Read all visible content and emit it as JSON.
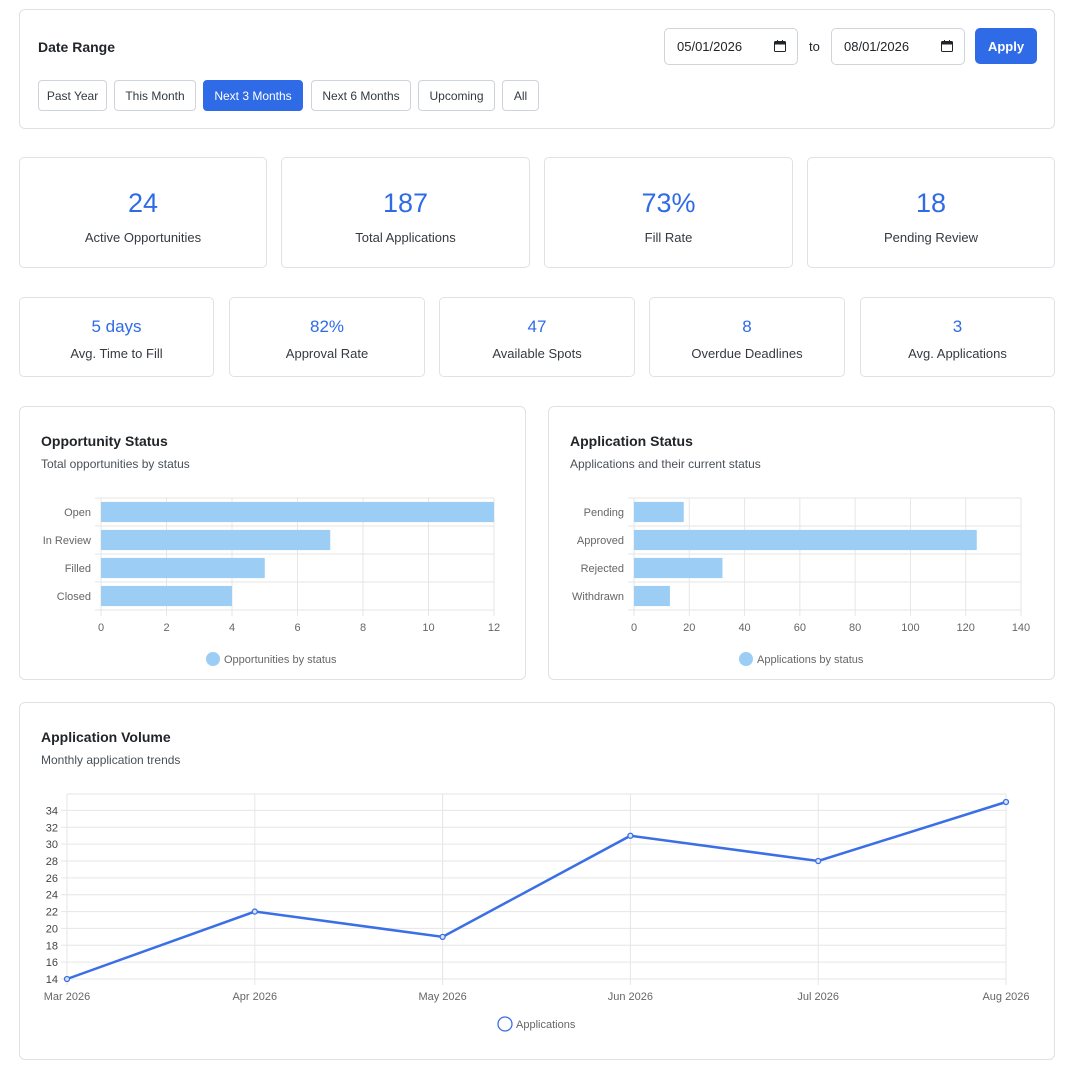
{
  "date_range": {
    "title": "Date Range",
    "from_value": "05/01/2026",
    "to_label": "to",
    "to_value": "08/01/2026",
    "apply_label": "Apply",
    "presets": [
      "Past Year",
      "This Month",
      "Next 3 Months",
      "Next 6 Months",
      "Upcoming",
      "All"
    ],
    "active_preset": "Next 3 Months"
  },
  "kpis_primary": [
    {
      "value": "24",
      "label": "Active Opportunities"
    },
    {
      "value": "187",
      "label": "Total Applications"
    },
    {
      "value": "73%",
      "label": "Fill Rate"
    },
    {
      "value": "18",
      "label": "Pending Review"
    }
  ],
  "kpis_secondary": [
    {
      "value": "5 days",
      "label": "Avg. Time to Fill"
    },
    {
      "value": "82%",
      "label": "Approval Rate"
    },
    {
      "value": "47",
      "label": "Available Spots"
    },
    {
      "value": "8",
      "label": "Overdue Deadlines"
    },
    {
      "value": "3",
      "label": "Avg. Applications"
    }
  ],
  "colors": {
    "accent": "#2f6be6",
    "bar_fill": "#9ccef5",
    "line": "#3a6fe5",
    "grid": "#e6e6e6"
  },
  "chart_data": [
    {
      "type": "bar",
      "orientation": "horizontal",
      "title": "Opportunity Status",
      "subtitle": "Total opportunities by status",
      "categories": [
        "Open",
        "In Review",
        "Filled",
        "Closed"
      ],
      "series": [
        {
          "name": "Opportunities by status",
          "values": [
            12,
            7,
            5,
            4
          ]
        }
      ],
      "xlim": [
        0,
        12
      ],
      "xticks": [
        0,
        2,
        4,
        6,
        8,
        10,
        12
      ],
      "grid": true,
      "legend": "bottom"
    },
    {
      "type": "bar",
      "orientation": "horizontal",
      "title": "Application Status",
      "subtitle": "Applications and their current status",
      "categories": [
        "Pending",
        "Approved",
        "Rejected",
        "Withdrawn"
      ],
      "series": [
        {
          "name": "Applications by status",
          "values": [
            18,
            124,
            32,
            13
          ]
        }
      ],
      "xlim": [
        0,
        140
      ],
      "xticks": [
        0,
        20,
        40,
        60,
        80,
        100,
        120,
        140
      ],
      "grid": true,
      "legend": "bottom"
    },
    {
      "type": "line",
      "title": "Application Volume",
      "subtitle": "Monthly application trends",
      "categories": [
        "Mar 2026",
        "Apr 2026",
        "May 2026",
        "Jun 2026",
        "Jul 2026",
        "Aug 2026"
      ],
      "series": [
        {
          "name": "Applications",
          "values": [
            14,
            22,
            19,
            31,
            28,
            35
          ]
        }
      ],
      "ylim": [
        14,
        35
      ],
      "yticks": [
        14,
        16,
        18,
        20,
        22,
        24,
        26,
        28,
        30,
        32,
        34
      ],
      "grid": true,
      "legend": "bottom"
    }
  ]
}
